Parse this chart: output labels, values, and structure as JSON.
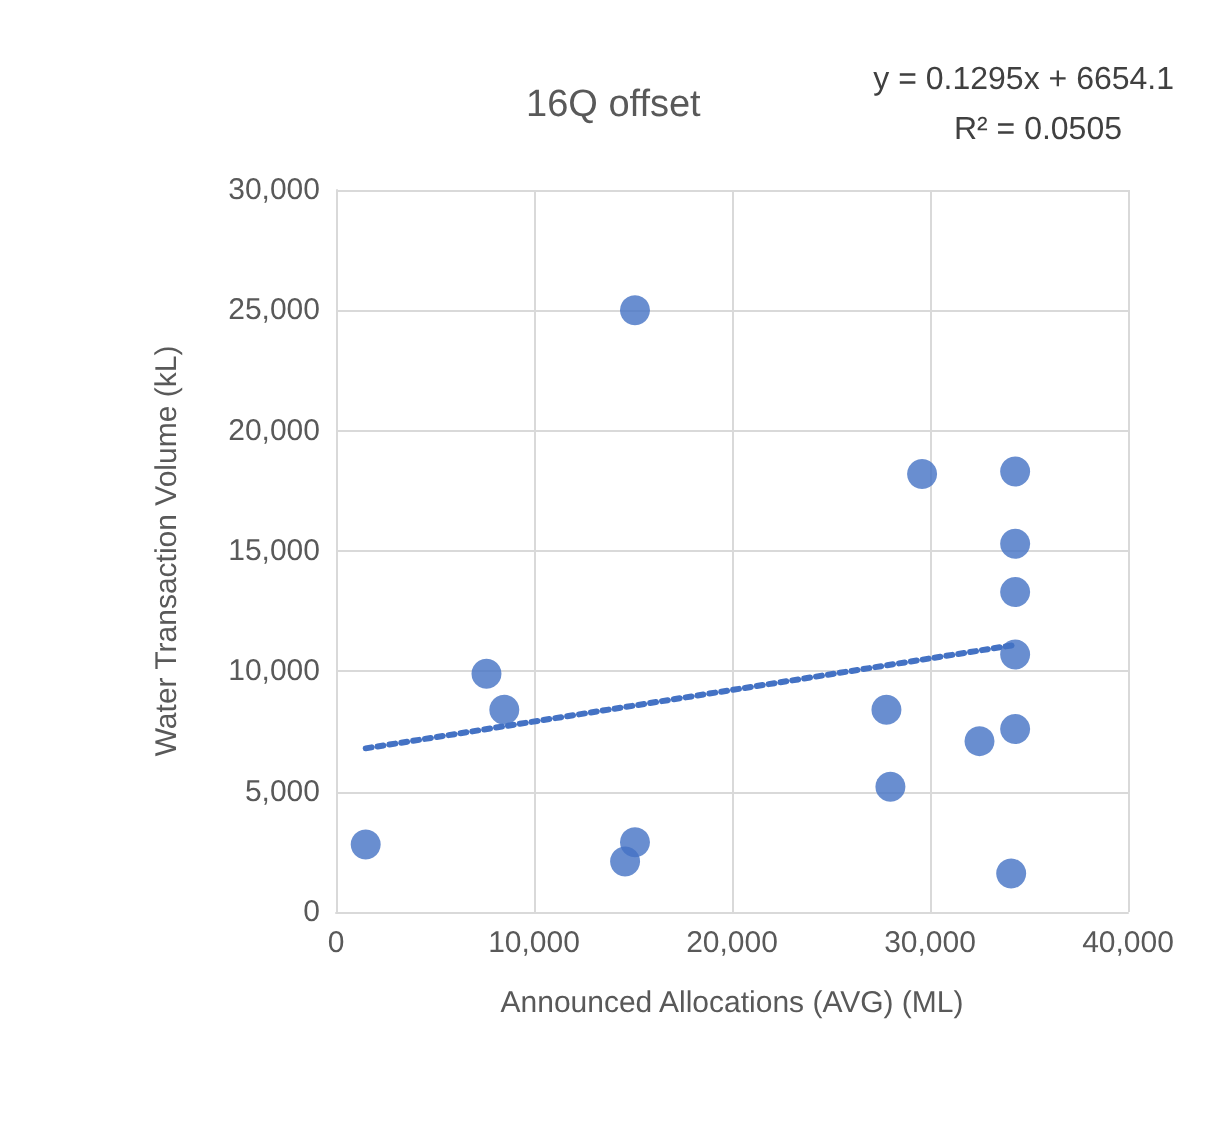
{
  "chart_data": {
    "type": "scatter",
    "title": "16Q offset",
    "xlabel": "Announced Allocations (AVG) (ML)",
    "ylabel": "Water Transaction Volume (kL)",
    "annotations": [
      "y = 0.1295x + 6654.1",
      "R² = 0.0505"
    ],
    "xlim": [
      0,
      40000
    ],
    "xticks": [
      {
        "value": 0,
        "label": "0"
      },
      {
        "value": 10000,
        "label": "10,000"
      },
      {
        "value": 20000,
        "label": "20,000"
      },
      {
        "value": 30000,
        "label": "30,000"
      },
      {
        "value": 40000,
        "label": "40,000"
      }
    ],
    "ylim": [
      0,
      30000
    ],
    "yticks": [
      {
        "value": 0,
        "label": "0"
      },
      {
        "value": 5000,
        "label": "5,000"
      },
      {
        "value": 10000,
        "label": "10,000"
      },
      {
        "value": 15000,
        "label": "15,000"
      },
      {
        "value": 20000,
        "label": "20,000"
      },
      {
        "value": 25000,
        "label": "25,000"
      },
      {
        "value": 30000,
        "label": "30,000"
      }
    ],
    "grid": true,
    "series": [
      {
        "color": "#4472c4",
        "marker": "circle",
        "x": [
          1500,
          7600,
          8500,
          15100,
          15100,
          14600,
          27800,
          28000,
          29600,
          32500,
          34300,
          34300,
          34300,
          34300,
          34300,
          34100
        ],
        "values": [
          2800,
          9900,
          8400,
          25000,
          2900,
          2100,
          8400,
          5200,
          18200,
          7100,
          18300,
          15300,
          13300,
          10700,
          7600,
          1600
        ]
      },
      {
        "type": "line",
        "color": "#4472c4",
        "marker": "none",
        "line_style": "dotted",
        "x": [
          1500,
          34300
        ],
        "values": [
          6800,
          11100
        ]
      }
    ]
  }
}
